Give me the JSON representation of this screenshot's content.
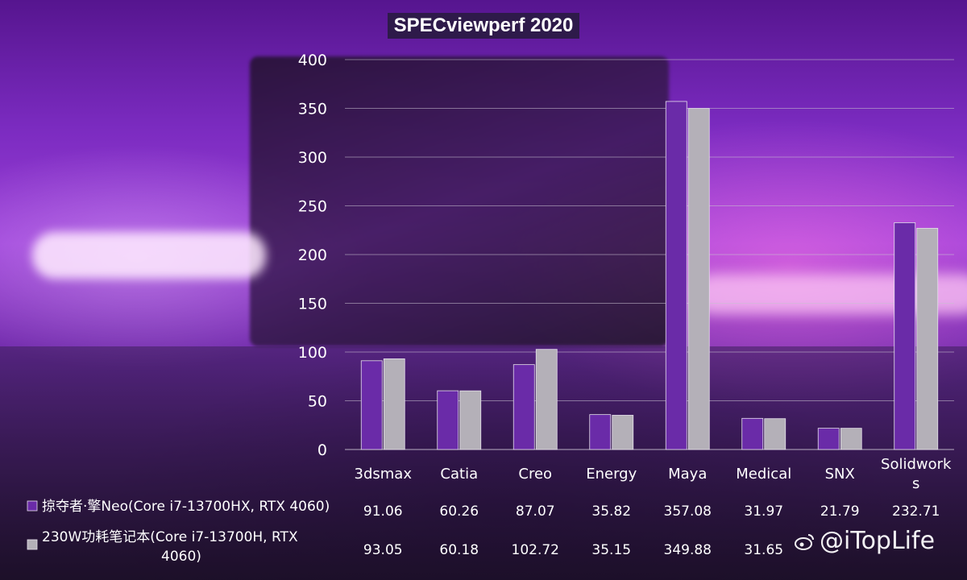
{
  "colors": {
    "series1": "#6a2ba8",
    "series2": "#b4b0b8",
    "gridline": "#c8c0d0",
    "text": "#ffffff"
  },
  "chart_data": {
    "type": "bar",
    "title": "SPECviewperf 2020",
    "categories": [
      "3dsmax",
      "Catia",
      "Creo",
      "Energy",
      "Maya",
      "Medical",
      "SNX",
      "Solidworks"
    ],
    "series": [
      {
        "name": "掠夺者·擎Neo(Core i7-13700HX, RTX 4060)",
        "values": [
          91.06,
          60.26,
          87.07,
          35.82,
          357.08,
          31.97,
          21.79,
          232.71
        ],
        "display": [
          "91.06",
          "60.26",
          "87.07",
          "35.82",
          "357.08",
          "31.97",
          "21.79",
          "232.71"
        ]
      },
      {
        "name": "230W功耗笔记本(Core i7-13700H, RTX 4060)",
        "values": [
          93.05,
          60.18,
          102.72,
          35.15,
          349.88,
          31.65,
          21.78,
          226.97
        ],
        "display": [
          "93.05",
          "60.18",
          "102.72",
          "35.15",
          "349.88",
          "31.65",
          "",
          ""
        ]
      }
    ],
    "ylim": [
      0,
      400
    ],
    "yticks": [
      "0",
      "50",
      "100",
      "150",
      "200",
      "250",
      "300",
      "350",
      "400"
    ],
    "grid": true,
    "legend": "data-table-bottom"
  },
  "watermark": {
    "text": "@iTopLife",
    "icon": "weibo-icon"
  }
}
